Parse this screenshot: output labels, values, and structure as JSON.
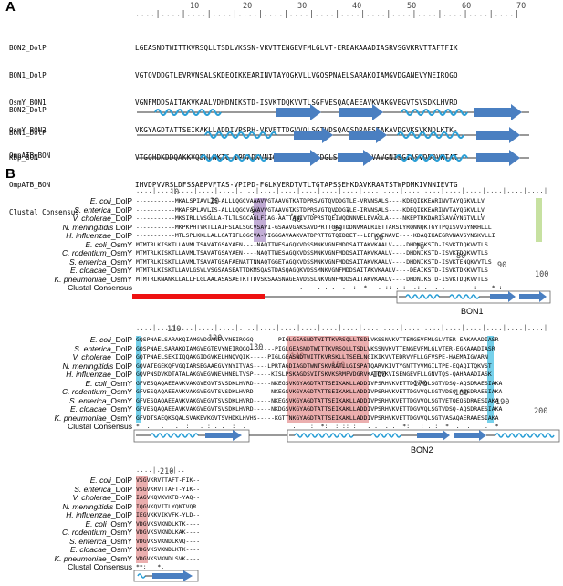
{
  "panel_a": {
    "letter": "A",
    "ruler": [
      "10",
      "20",
      "30",
      "40",
      "50",
      "60",
      "70"
    ],
    "rows": [
      {
        "name": "BON2_DolP",
        "seq": "LGEASNDTWITTKVRSQLLTSDLVKSSN-VKVTTENGEVFMLGLVT-EREAKAAADIASRVSGVKRVTTAFTFIK"
      },
      {
        "name": "BON1_DolP",
        "seq": "VGTQVDDGTLEVRVNSALSKDEQIKKEARINVTAYQGKVLLVGQSPNAELSARAKQIAMGVDGANEVYNEIRQGQ"
      },
      {
        "name": "OsmY_BON1",
        "seq": "VGNFMDDSAITAKVKAALVDHDNIKSTD-ISVKTDQKVVTLSGFVESQAQAEEAVKVAKGVEGVTSVSDKLHVRD"
      },
      {
        "name": "OsmY_BON2",
        "seq": "VKGYAGDTATTSEIKAKLLADDIVPSRH-VKVETTDGVVQLSGTVDSQAQSDRAESIAKAVDGVKSVKNDLKTK-"
      },
      {
        "name": "Kbp_BON",
        "seq": "VTGQHDKDDQAKKVQEHLNKTG-IPDADKVNIQIADGKATVTGDGLSQEAKEKILVAVGNISGIASVDDQVKTAT"
      },
      {
        "name": "OmpATB_BON",
        "seq": "IHVDPVVRSLDFSSAEPVFTAS-VPIPD-FGLKVERDTVTLTGTAPSSEHKDAVKRAATSTWPDMKIVNNIEVTG"
      },
      {
        "name": "Clustal Consensus",
        "seq": "                 :         :     :  :    .    :  *      .              :  :     ."
      }
    ],
    "ss_rows": [
      {
        "name": "BON2_DolP"
      },
      {
        "name": "BON1_DolP"
      },
      {
        "name": "OmpATB_BON"
      }
    ]
  },
  "panel_b": {
    "letter": "B",
    "block1_ruler": [
      "10",
      "20",
      "30",
      "40",
      "50",
      "60",
      "70",
      "80",
      "90",
      "100"
    ],
    "block2_ruler": [
      "110",
      "120",
      "130",
      "140",
      "150",
      "160",
      "170",
      "180",
      "190",
      "200"
    ],
    "block3_ruler": [
      "210"
    ],
    "species": [
      {
        "genus": "E. coli",
        "suffix": "_DolP"
      },
      {
        "genus": "S. enterica",
        "suffix": "_DolP"
      },
      {
        "genus": "V. cholerae",
        "suffix": "_DolP"
      },
      {
        "genus": "N. meningitidis",
        "suffix": " DolP"
      },
      {
        "genus": "H. influenzae",
        "suffix": "_DolP"
      },
      {
        "genus": "E. coli",
        "suffix": "_OsmY"
      },
      {
        "genus": "C. rodentium",
        "suffix": "_OsmY"
      },
      {
        "genus": "S. enterica",
        "suffix": "_OsmY"
      },
      {
        "genus": "E. cloacae",
        "suffix": "_OsmY"
      },
      {
        "genus": "K. pneumoniae",
        "suffix": "_OsmY"
      }
    ],
    "consensus_label": "Clustal Consensus",
    "block1": [
      "-----------MKALSPIAVLIS-ALLLQGCVAAAVVGTAAVGTKATDPRSVGTQVDDGTLE-VRVNSALS----KDEQIKKEARINVTAYQGKVLLV",
      "-----------MKAFSPLAVLIS-ALLLQGCVAAAVVGTAAVGTKSTDPRSVGTQVDDGTLE-IRVNSALS----KDEQIKKEARINVTAYQGKVLLV",
      "-----------MKSIRLLVSGLLA-TLTLSGCAGLFIAG-AATTANIVTDPRSTQEIWQDNNVELEVAGLA----NKEPTRKDARISAVAYNGTVLLV",
      "-----------MKPKPHTVRTLIAIFSLALSGCVSAVI-GSAAVGAKSAVDPRTTGAQTDDNVMALRIETTARSLYRQNNQKTGYTPQISVVGYNRHLLL",
      "-----------MTLSPLKKLLALLGATIFLQGCVA-VIGGGAVAAKVATDPRTTGTQIDDET--LEFKVENAVE----KDAQIKAEGRVNAVSYNGKVLLI",
      "MTMTRLKISKTLLAVMLTSAVATGSAYAEN----NAQTTNESAGQKVDSSMNKVGNFMDDSAITAKVKAALV----DHDNIKSTD-ISVKTDQKVVTLS",
      "MTMTRLKISKTLLAVMLTSAVATGSAYAEN----NAQTTNESAGQKVDSSMNKVGNFMDDSAITAKVKAALV----DHDNIKSTD-ISVKTDQKVVTLS",
      "MTMTRLKISKTLLAVMLTSAVATGSAFAENATTNNAQTGGETAGQKVDSSMNKVGNFMDDSAITAKVKAALV----DHDNIKSTD-ISVKTENQKVVTLS",
      "MTMTRLKISKTLLAVLGSVLVSGSAASEATTDKMSQASTDASQAGQKVDSSMNKVGNFMDDSAITAKVKAALV----DEAIKSTD-ISVKTDKKVVTLS",
      "MTMTRLKNANKLLALLFLGLAALASASAETKTTDVSKSAASNAGEAVDSSLNKVGNFMDDSAITAKVKAALV----DHDNIKSTD-ISVKTDQKVVTLS",
      "                                              .    . . .  .  :  *   . :: . :  .: .  . .        :    * :"
    ],
    "block2": [
      "GQSPNAELSARAKQIAMGVDGANEVYNEIRQGQ-------PIGLGEASNDTWITTKVRSQLLTSDLVKSSNVKVTTENGEVFMLGLVTER-EAKAAADIASR",
      "GQSPNAELSARAKQIAMGVEGTEVYNEIRQGQ-------PIGLGEASNDTWITTKVRSQLLTSDLVKSSNVKVTTENGEVFMLGLVTER-EGKAAADIASR",
      "GQTPNAELSEKIIQQAKGIDGVKELHNQVQIK-----PIGLGEASNDTWITTKVRSKLLTSEELNGIKIKVVTEDRVVFLLGFVSPE-HAEMAIGVARN",
      "GQVATEGEKQFVGQIARSEGAAEGVYNYITVAS----LPRTAGDIAGDTWNTSKVRATLLGISPATQARVKIVTYGNTTYVMGILTPE-EQAQITQKVST",
      "GQVPNSDVKDTATALAKGVEGVNEVHNELTVSP-----KISLPSKAGDSVITSKVKSRMFVDGRVKATDVKVISENGEVFLLGNVTQS-QAHAAADIASK",
      "GFVESQAQAEEAVKVAKGVEGVTSVSDKLHVRD-----NKEGSVKGYAGDTATTSEIKAKLLADDIVPSRHVKVETTDGVVQLSGTVDSQ-AQSDRAESIAKA",
      "GFVESQAQAEEAVKVAKGVEGVTSVSDKLHVRD-----NKEGSVKGYAGDTATTSEIKAKLLADDIVPSRHVKVETTDGVVQLSGTVDSQ-AQSDRAESIAKA",
      "GFVESQAQAEEAVKVAKGVEGVTSVSDKLHVRD-----NKEGSVKGYAGDTATTSEIKAKLLADDIVPSRHVKVETTDGVVQLSGTVETQEQSDRAESIAKA",
      "GFVESQAQAEEAVKVAKGVEGVTSVSDKLHVRD-----NKDGSVKGYAGDTATTSEIKAKLLADDIVPSRHVKVETTDGVVQLSGTVDSQ-AQSDRAESIAKA",
      "GFVDTSAEQKSQALSVAKEVKGVTSVHDKLHVHS-----KGTTNKGYAGDTATTSEIKAKLLADDIVPSRHVKVETTDGVVQLSGTVASAQAERAAESIAKA",
      "*  .   .   .  :   . : . .  :  .  .          .    :  *:  : :: :   . .  . .  *:   : . :  *  .  .    .  *"
    ],
    "block3": [
      "VSGVKRVTTAFT-FIK--",
      "VSGVKRVTTAFT-YIK--",
      "IAGVKQVKVKFD-YAQ--",
      "IQGVKQVITLYQNTVQR",
      "IEGVKKVIKVFK-YLD--",
      "VDGVKSVKNDLKTK----",
      "VDGVKSVKNDLKAK----",
      "VDGVKSVKNDLKVQ----",
      "VDGVKSVKNDLKTK----",
      "VDGVKSVKNDLSVK----",
      "**:   *.         "
    ],
    "bon1_label": "BON1",
    "bon2_label": "BON2"
  },
  "colors": {
    "helix": "#2b9fd6",
    "strand": "#4a7fc1",
    "signal": "#ee1111",
    "purple": "#a98bc6",
    "green": "#b9d98a",
    "cyan": "#54c6e6",
    "red_shade": "#dd7a7a",
    "box": "#666666"
  }
}
